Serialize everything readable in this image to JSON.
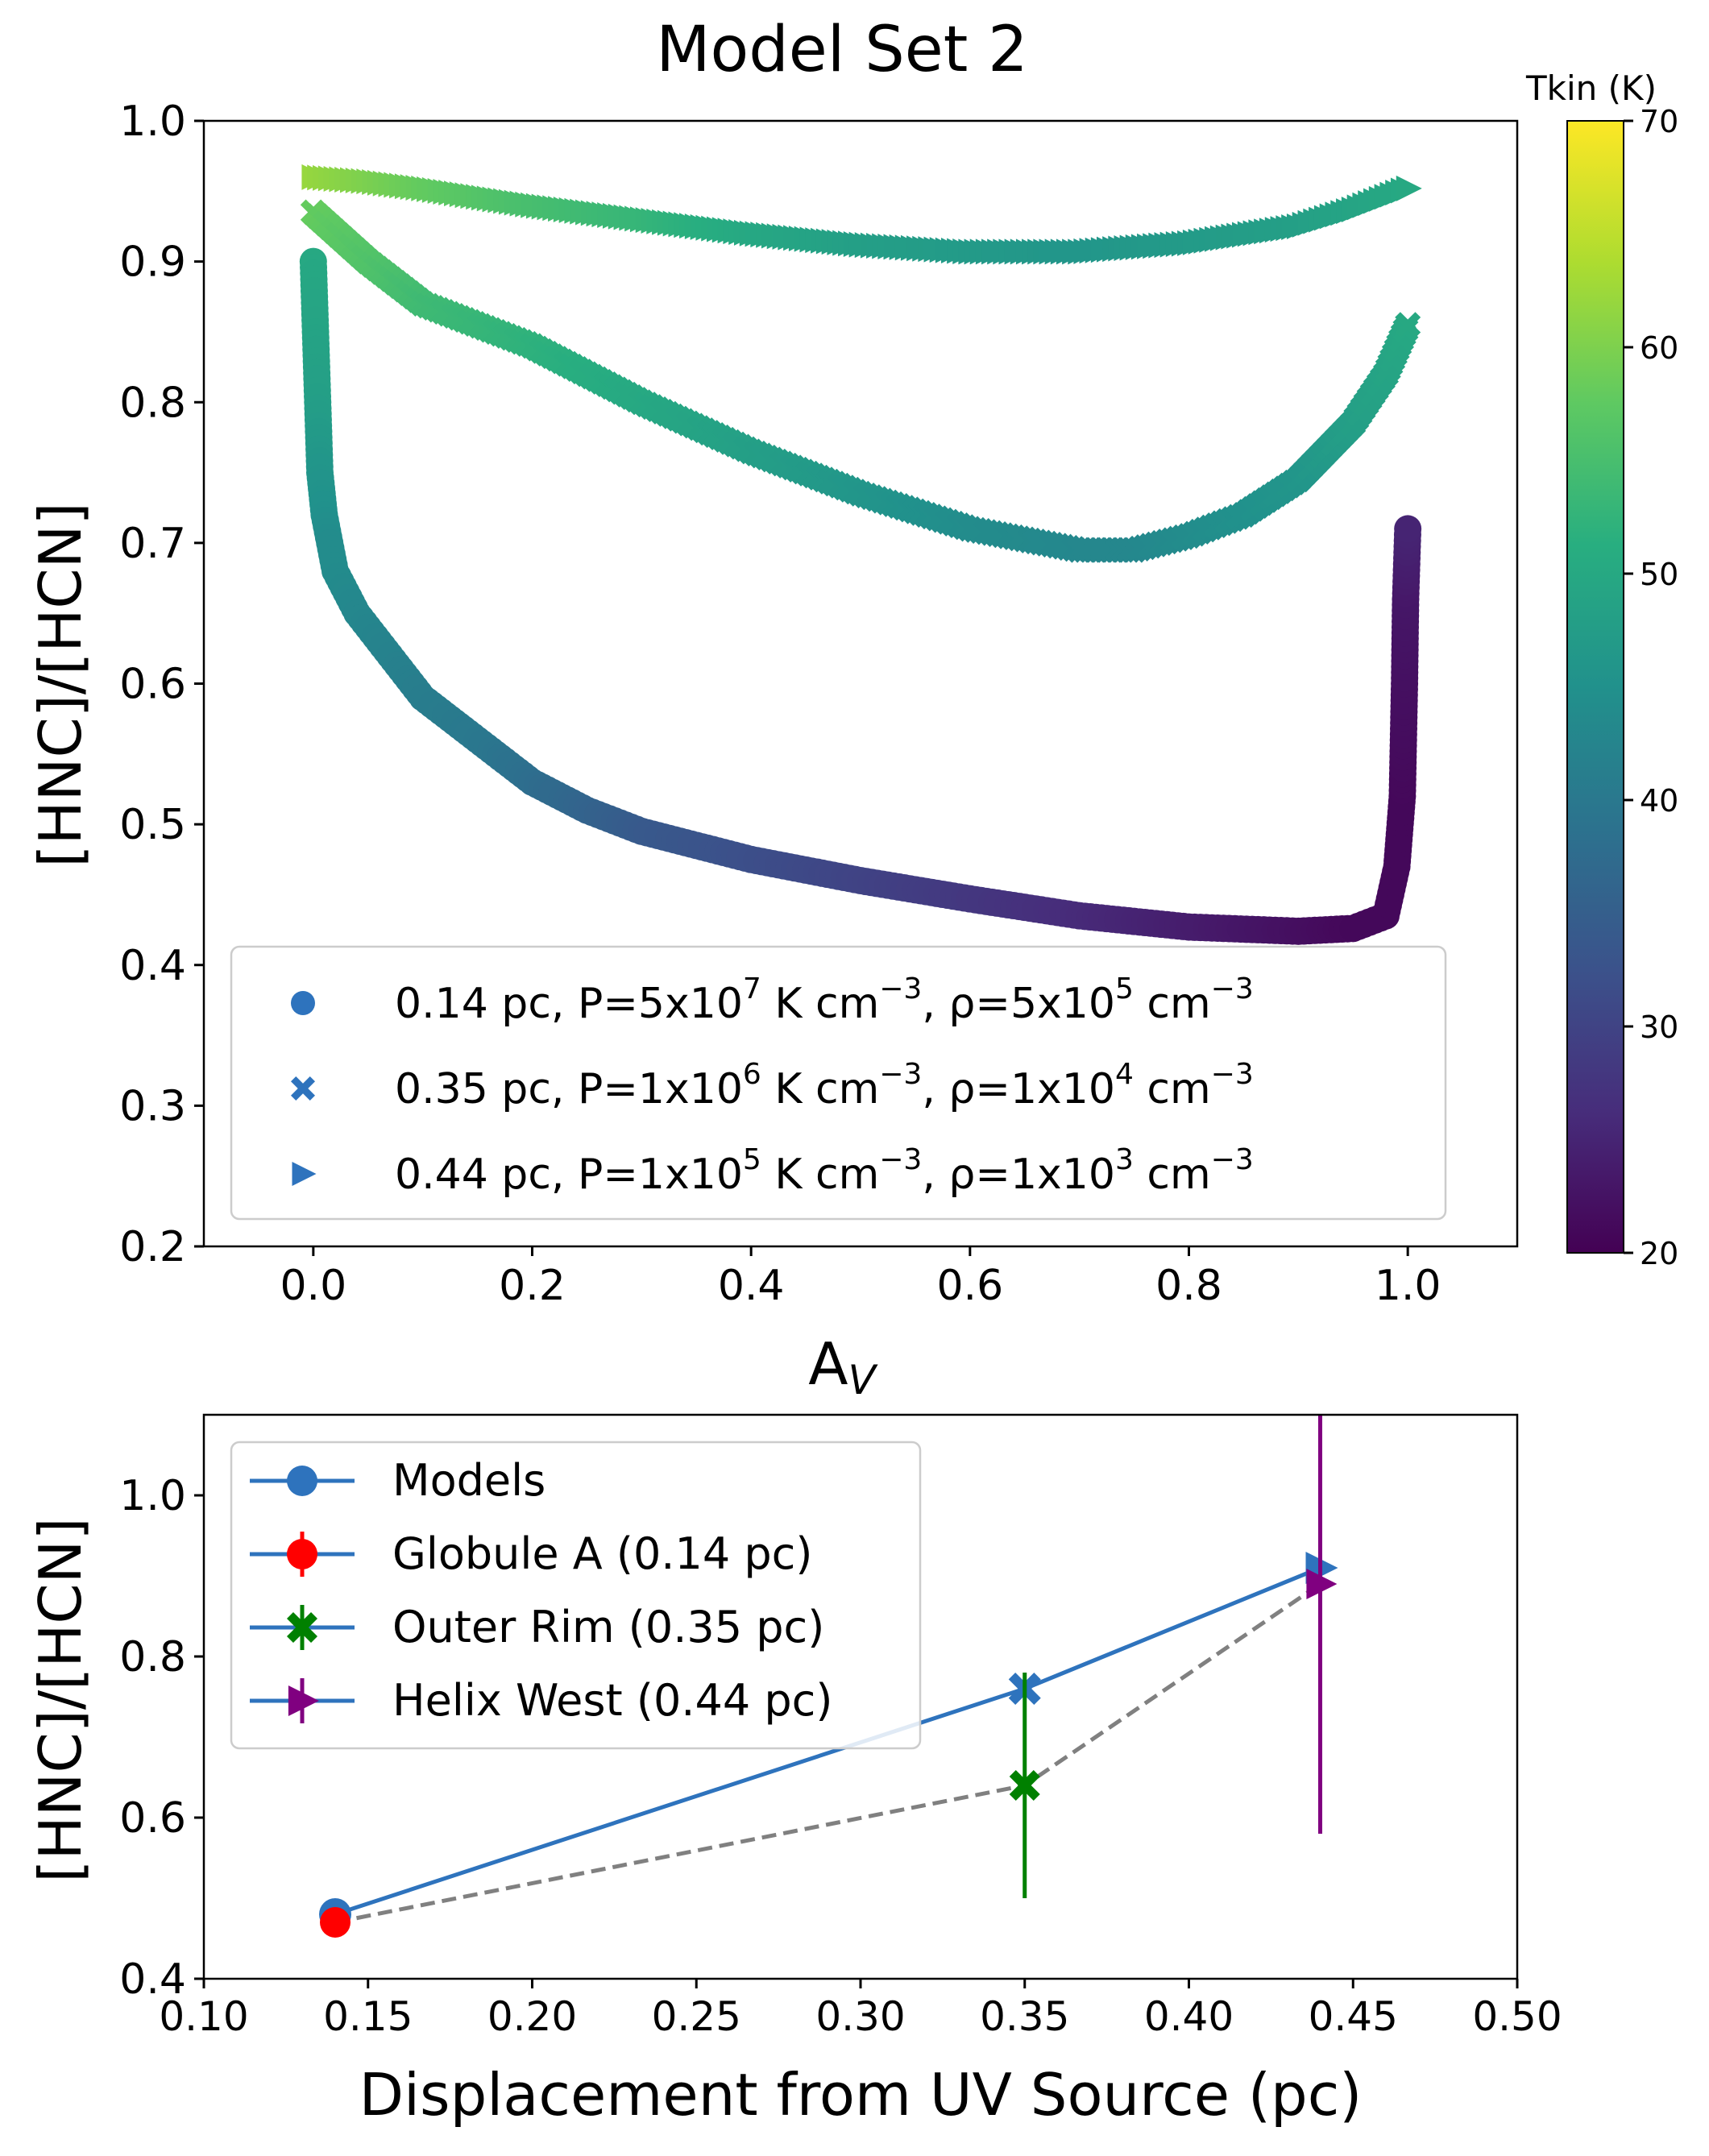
{
  "figure_title": "Model Set 2",
  "colorbar": {
    "label": "Tkin (K)",
    "range": [
      20,
      70
    ],
    "ticks": [
      "20",
      "30",
      "40",
      "50",
      "60",
      "70"
    ],
    "colormap": "viridis"
  },
  "chart_data": [
    {
      "type": "scatter",
      "title": "Model Set 2",
      "xlabel_main": "A",
      "xlabel_sub": "V",
      "ylabel": "[HNC]/[HCN]",
      "xlim": [
        -0.1,
        1.1
      ],
      "ylim": [
        0.2,
        1.0
      ],
      "xticks": [
        "0.0",
        "0.2",
        "0.4",
        "0.6",
        "0.8",
        "1.0"
      ],
      "yticks": [
        "0.2",
        "0.3",
        "0.4",
        "0.5",
        "0.6",
        "0.7",
        "0.8",
        "0.9",
        "1.0"
      ],
      "color_variable": "Tkin (K)",
      "legend": [
        {
          "marker": "circle",
          "parts": [
            "0.14 pc, P=5x10",
            "7",
            " K cm",
            "−3",
            ", ρ=5x10",
            "5",
            " cm",
            "−3"
          ]
        },
        {
          "marker": "x",
          "parts": [
            "0.35 pc, P=1x10",
            "6",
            " K cm",
            "−3",
            ", ρ=1x10",
            "4",
            " cm",
            "−3"
          ]
        },
        {
          "marker": "triangle-right",
          "parts": [
            "0.44 pc, P=1x10",
            "5",
            " K cm",
            "−3",
            ", ρ=1x10",
            "3",
            " cm",
            "−3"
          ]
        }
      ],
      "series": [
        {
          "name": "0.14 pc",
          "marker": "circle",
          "points": [
            {
              "x": 0.0,
              "y": 0.9,
              "t": 50
            },
            {
              "x": 0.002,
              "y": 0.85,
              "t": 49
            },
            {
              "x": 0.004,
              "y": 0.8,
              "t": 48
            },
            {
              "x": 0.006,
              "y": 0.75,
              "t": 46
            },
            {
              "x": 0.01,
              "y": 0.72,
              "t": 45
            },
            {
              "x": 0.015,
              "y": 0.7,
              "t": 44
            },
            {
              "x": 0.02,
              "y": 0.68,
              "t": 44
            },
            {
              "x": 0.04,
              "y": 0.65,
              "t": 43
            },
            {
              "x": 0.07,
              "y": 0.62,
              "t": 42
            },
            {
              "x": 0.1,
              "y": 0.59,
              "t": 41
            },
            {
              "x": 0.15,
              "y": 0.56,
              "t": 40
            },
            {
              "x": 0.2,
              "y": 0.53,
              "t": 38
            },
            {
              "x": 0.25,
              "y": 0.51,
              "t": 36
            },
            {
              "x": 0.3,
              "y": 0.495,
              "t": 34
            },
            {
              "x": 0.4,
              "y": 0.475,
              "t": 32
            },
            {
              "x": 0.5,
              "y": 0.46,
              "t": 30
            },
            {
              "x": 0.6,
              "y": 0.447,
              "t": 28
            },
            {
              "x": 0.7,
              "y": 0.435,
              "t": 26
            },
            {
              "x": 0.8,
              "y": 0.427,
              "t": 24
            },
            {
              "x": 0.9,
              "y": 0.424,
              "t": 22
            },
            {
              "x": 0.95,
              "y": 0.426,
              "t": 21
            },
            {
              "x": 0.98,
              "y": 0.435,
              "t": 21
            },
            {
              "x": 0.99,
              "y": 0.47,
              "t": 21
            },
            {
              "x": 0.995,
              "y": 0.52,
              "t": 21
            },
            {
              "x": 0.997,
              "y": 0.6,
              "t": 22
            },
            {
              "x": 0.998,
              "y": 0.66,
              "t": 23
            },
            {
              "x": 1.0,
              "y": 0.71,
              "t": 25
            }
          ]
        },
        {
          "name": "0.35 pc",
          "marker": "x",
          "points": [
            {
              "x": 0.0,
              "y": 0.935,
              "t": 58
            },
            {
              "x": 0.05,
              "y": 0.9,
              "t": 56
            },
            {
              "x": 0.1,
              "y": 0.87,
              "t": 54
            },
            {
              "x": 0.2,
              "y": 0.84,
              "t": 52
            },
            {
              "x": 0.3,
              "y": 0.8,
              "t": 50
            },
            {
              "x": 0.4,
              "y": 0.765,
              "t": 48
            },
            {
              "x": 0.5,
              "y": 0.735,
              "t": 46
            },
            {
              "x": 0.6,
              "y": 0.71,
              "t": 44
            },
            {
              "x": 0.7,
              "y": 0.695,
              "t": 43
            },
            {
              "x": 0.75,
              "y": 0.695,
              "t": 43
            },
            {
              "x": 0.8,
              "y": 0.705,
              "t": 44
            },
            {
              "x": 0.85,
              "y": 0.72,
              "t": 45
            },
            {
              "x": 0.9,
              "y": 0.745,
              "t": 46
            },
            {
              "x": 0.95,
              "y": 0.785,
              "t": 48
            },
            {
              "x": 0.98,
              "y": 0.82,
              "t": 49
            },
            {
              "x": 1.0,
              "y": 0.855,
              "t": 50
            }
          ]
        },
        {
          "name": "0.44 pc",
          "marker": "triangle-right",
          "points": [
            {
              "x": 0.0,
              "y": 0.96,
              "t": 62
            },
            {
              "x": 0.05,
              "y": 0.957,
              "t": 60
            },
            {
              "x": 0.1,
              "y": 0.952,
              "t": 58
            },
            {
              "x": 0.2,
              "y": 0.94,
              "t": 55
            },
            {
              "x": 0.3,
              "y": 0.93,
              "t": 53
            },
            {
              "x": 0.4,
              "y": 0.92,
              "t": 50
            },
            {
              "x": 0.5,
              "y": 0.912,
              "t": 48
            },
            {
              "x": 0.6,
              "y": 0.907,
              "t": 47
            },
            {
              "x": 0.7,
              "y": 0.907,
              "t": 46
            },
            {
              "x": 0.8,
              "y": 0.913,
              "t": 47
            },
            {
              "x": 0.9,
              "y": 0.925,
              "t": 48
            },
            {
              "x": 0.95,
              "y": 0.937,
              "t": 49
            },
            {
              "x": 1.0,
              "y": 0.952,
              "t": 50
            }
          ]
        }
      ]
    },
    {
      "type": "line",
      "xlabel": "Displacement from UV Source (pc)",
      "ylabel": "[HNC]/[HCN]",
      "xlim": [
        0.1,
        0.5
      ],
      "ylim": [
        0.4,
        1.1
      ],
      "xticks": [
        "0.10",
        "0.15",
        "0.20",
        "0.25",
        "0.30",
        "0.35",
        "0.40",
        "0.45",
        "0.50"
      ],
      "yticks": [
        "0.4",
        "0.6",
        "0.8",
        "1.0"
      ],
      "legend": [
        {
          "label": "Models",
          "marker": "circle",
          "color": "#2e73bd"
        },
        {
          "label": "Globule A (0.14 pc)",
          "marker": "circle",
          "color": "#ff0000"
        },
        {
          "label": "Outer Rim (0.35 pc)",
          "marker": "x",
          "color": "#008000"
        },
        {
          "label": "Helix West (0.44 pc)",
          "marker": "triangle-right",
          "color": "#800080"
        }
      ],
      "models": {
        "name": "Models",
        "color": "#2e73bd",
        "x": [
          0.14,
          0.35,
          0.44
        ],
        "y": [
          0.48,
          0.76,
          0.91
        ],
        "markers": [
          "circle",
          "x",
          "triangle-right"
        ]
      },
      "observations": {
        "connector_color": "#808080",
        "points": [
          {
            "name": "Globule A (0.14 pc)",
            "x": 0.14,
            "y": 0.47,
            "yerr_low": 0.47,
            "yerr_high": 0.47,
            "marker": "circle",
            "color": "#ff0000"
          },
          {
            "name": "Outer Rim (0.35 pc)",
            "x": 0.35,
            "y": 0.64,
            "yerr_low": 0.5,
            "yerr_high": 0.78,
            "marker": "x",
            "color": "#008000"
          },
          {
            "name": "Helix West (0.44 pc)",
            "x": 0.44,
            "y": 0.89,
            "yerr_low": 0.58,
            "yerr_high": 1.1,
            "marker": "triangle-right",
            "color": "#800080"
          }
        ]
      }
    }
  ]
}
